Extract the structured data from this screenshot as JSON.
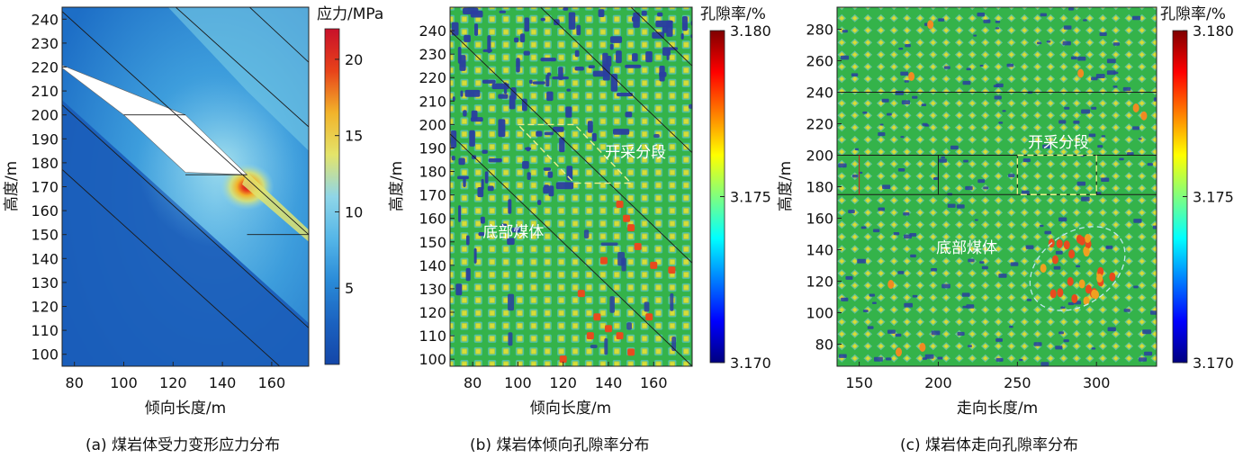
{
  "figure": {
    "captions": [
      "(a)  煤岩体受力变形应力分布",
      "(b)  煤岩体倾向孔隙率分布",
      "(c)  煤岩体走向孔隙率分布"
    ]
  },
  "colors": {
    "jet": [
      "#00007f",
      "#0000ff",
      "#007fff",
      "#00ffff",
      "#7fff7f",
      "#ffff00",
      "#ff7f00",
      "#ff0000",
      "#7f0000"
    ],
    "stress": [
      "#1446a8",
      "#1b62c0",
      "#2a8bd8",
      "#55b6e8",
      "#8fd6e8",
      "#e4e46a",
      "#f2b32a",
      "#e8421a",
      "#c8102a"
    ],
    "porosity_base": "#34b34a",
    "porosity_cell": "#d8dc3a",
    "porosity_ring": "#4ec0b0",
    "porosity_dark": "#2a3ea0",
    "porosity_hot": "#e84a1e"
  },
  "chart_data": [
    {
      "type": "heatmap",
      "panel": "a",
      "title": "",
      "xlabel": "倾向长度/m",
      "ylabel": "高度/m",
      "xlim": [
        75,
        175
      ],
      "ylim": [
        95,
        245
      ],
      "xticks": [
        80,
        100,
        120,
        140,
        160
      ],
      "yticks": [
        100,
        110,
        120,
        130,
        140,
        150,
        160,
        170,
        180,
        190,
        200,
        210,
        220,
        230,
        240
      ],
      "colorbar": {
        "label": "应力/MPa",
        "range": [
          0,
          22
        ],
        "ticks": [
          5,
          10,
          15,
          20
        ]
      },
      "annotations": [],
      "peak_stress": {
        "x": 150,
        "y": 170
      },
      "goaf_polygon": [
        [
          72,
          222
        ],
        [
          100,
          200
        ],
        [
          125,
          176
        ],
        [
          150,
          175
        ],
        [
          125,
          200
        ]
      ],
      "seam_lines": [
        [
          [
            72,
            180
          ],
          [
            175,
            84
          ]
        ],
        [
          [
            72,
            207
          ],
          [
            175,
            111
          ]
        ],
        [
          [
            72,
            246
          ],
          [
            175,
            150
          ]
        ],
        [
          [
            120,
            246
          ],
          [
            175,
            195
          ]
        ],
        [
          [
            150,
            246
          ],
          [
            175,
            222
          ]
        ]
      ],
      "mining_lines": [
        [
          [
            100,
            200
          ],
          [
            125,
            200
          ]
        ],
        [
          [
            125,
            175
          ],
          [
            150,
            175
          ]
        ],
        [
          [
            150,
            150
          ],
          [
            175,
            150
          ]
        ]
      ]
    },
    {
      "type": "heatmap",
      "panel": "b",
      "title": "",
      "xlabel": "倾向长度/m",
      "ylabel": "高度/m",
      "xlim": [
        70,
        177
      ],
      "ylim": [
        97,
        250
      ],
      "xticks": [
        80,
        100,
        120,
        140,
        160
      ],
      "yticks": [
        100,
        110,
        120,
        130,
        140,
        150,
        160,
        170,
        180,
        190,
        200,
        210,
        220,
        230,
        240
      ],
      "colorbar": {
        "label": "孔隙率/%",
        "range": [
          3.17,
          3.18
        ],
        "ticks": [
          "3.170",
          "3.175",
          "3.180"
        ]
      },
      "annotations": [
        {
          "text": "开采分段",
          "x": 152,
          "y": 186
        },
        {
          "text": "底部煤体",
          "x": 98,
          "y": 152
        }
      ],
      "mining_segment": [
        [
          100,
          200
        ],
        [
          125,
          200
        ],
        [
          150,
          175
        ],
        [
          125,
          175
        ]
      ],
      "seam_lines": [
        [
          [
            70,
            196
          ],
          [
            177,
            97
          ]
        ],
        [
          [
            70,
            240
          ],
          [
            177,
            141
          ]
        ],
        [
          [
            110,
            250
          ],
          [
            177,
            188
          ]
        ],
        [
          [
            150,
            250
          ],
          [
            177,
            225
          ]
        ]
      ]
    },
    {
      "type": "heatmap",
      "panel": "c",
      "title": "",
      "xlabel": "走向长度/m",
      "ylabel": "高度/m",
      "xlim": [
        136,
        338
      ],
      "ylim": [
        66,
        294
      ],
      "xticks": [
        150,
        200,
        250,
        300
      ],
      "yticks": [
        80,
        100,
        120,
        140,
        160,
        180,
        200,
        220,
        240,
        260,
        280
      ],
      "colorbar": {
        "label": "孔隙率/%",
        "range": [
          3.17,
          3.18
        ],
        "ticks": [
          "3.170",
          "3.175",
          "3.180"
        ]
      },
      "annotations": [
        {
          "text": "开采分段",
          "x": 276,
          "y": 205
        },
        {
          "text": "底部煤体",
          "x": 218,
          "y": 138
        }
      ],
      "mining_segment": [
        [
          250,
          175
        ],
        [
          300,
          200
        ]
      ],
      "working_face_lines": [
        175,
        200,
        240
      ],
      "high_porosity_zone": {
        "cx": 288,
        "cy": 128,
        "rx": 30,
        "ry": 30
      }
    }
  ]
}
